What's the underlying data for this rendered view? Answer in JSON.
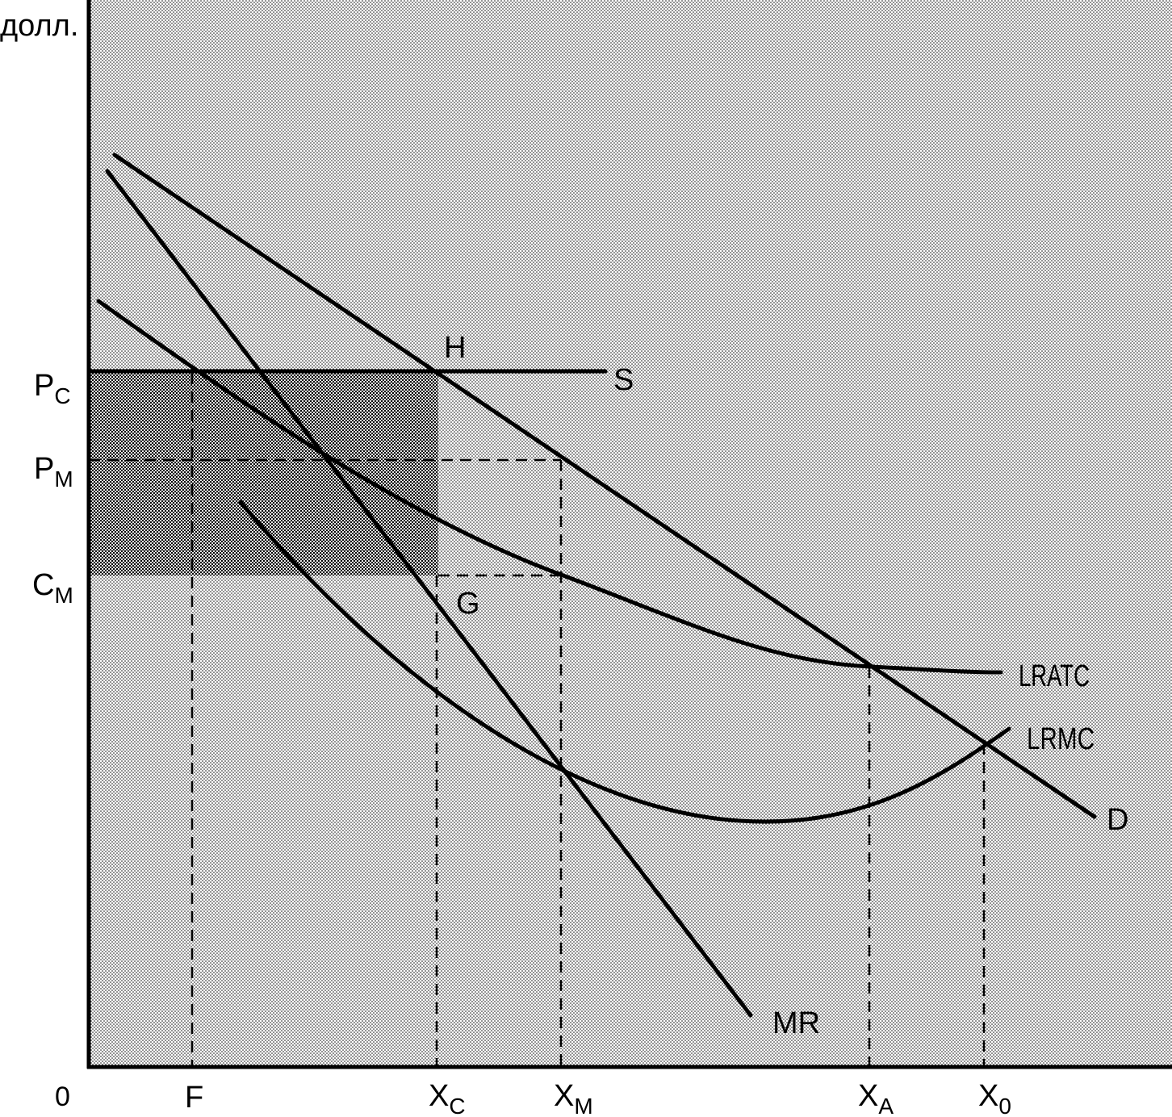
{
  "axis": {
    "y_label": "долл.",
    "origin_label": "0"
  },
  "x_labels": {
    "f": {
      "main": "F"
    },
    "xc": {
      "main": "X",
      "sub": "C"
    },
    "xm": {
      "main": "X",
      "sub": "M"
    },
    "xa": {
      "main": "X",
      "sub": "A"
    },
    "x0": {
      "main": "X",
      "sub": "0"
    }
  },
  "y_labels": {
    "pc": {
      "main": "P",
      "sub": "C"
    },
    "pm": {
      "main": "P",
      "sub": "M"
    },
    "cm": {
      "main": "C",
      "sub": "M"
    }
  },
  "curve_labels": {
    "supply": "S",
    "demand": "D",
    "marginal_revenue": "MR",
    "lratc": "LRATC",
    "lrmc": "LRMC"
  },
  "point_labels": {
    "h": "H",
    "g": "G"
  }
}
